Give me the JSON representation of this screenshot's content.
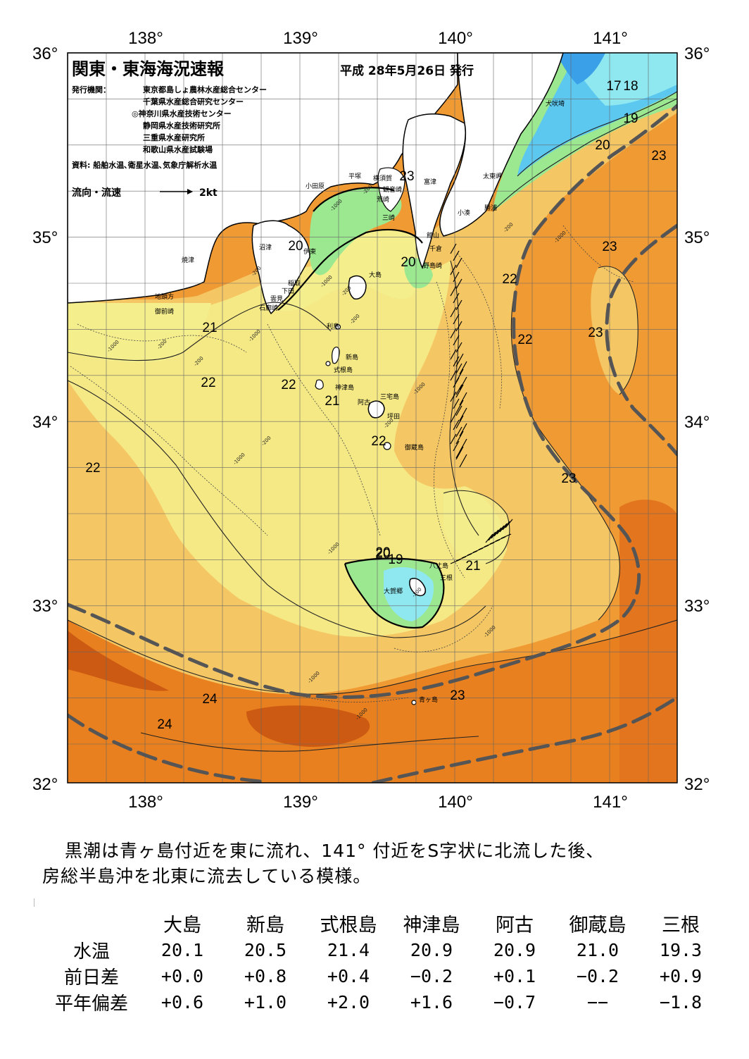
{
  "map": {
    "title": "関東・東海海況速報",
    "issued": "平成 28年5月26日 発行",
    "publisher_label": "発行機関：",
    "publishers": [
      "東京都島しょ農林水産総合センター",
      "千葉県水産総合研究センター",
      "◎神奈川県水産技術センター",
      "静岡県水産技術研究所",
      "三重県水産研究所",
      "和歌山県水産試験場"
    ],
    "source": "資料: 船舶水温､衛星水温､気象庁解析水温",
    "flow_legend": "流向・流速",
    "flow_unit": "2kt",
    "lon_labels": [
      "138°",
      "139°",
      "140°",
      "141°"
    ],
    "lat_labels": [
      "36°",
      "35°",
      "34°",
      "33°",
      "32°"
    ],
    "isotherm_labels": [
      "17",
      "18",
      "19",
      "20",
      "23",
      "23",
      "20",
      "20",
      "20",
      "22",
      "23",
      "21",
      "22",
      "23",
      "22",
      "22",
      "21",
      "22",
      "22",
      "23",
      "20",
      "19",
      "21",
      "24",
      "24",
      "23"
    ],
    "depth_labels": [
      "-200",
      "-1000",
      "-200",
      "-1000",
      "-200",
      "-200",
      "-1000",
      "-1000",
      "-200",
      "-200",
      "-1000",
      "-200",
      "-1000",
      "-200",
      "-1000",
      "-200",
      "-1000",
      "-1000",
      "-1000",
      "-1000",
      "-200"
    ],
    "place_names": [
      "犬吠埼",
      "太東岬",
      "勝浦",
      "小湊",
      "館山",
      "千倉",
      "野島崎",
      "富津",
      "横須賀",
      "観音崎",
      "荒崎",
      "三崎",
      "平塚",
      "小田原",
      "沼津",
      "伊東",
      "焼津",
      "稲取",
      "下田",
      "雲見",
      "石廊崎",
      "地頭方",
      "御前崎",
      "大島",
      "利島",
      "新島",
      "式根島",
      "神津島",
      "三宅島",
      "阿古",
      "坪田",
      "御蔵島",
      "八丈島",
      "三根",
      "大賀郷",
      "青ヶ島"
    ],
    "colors": {
      "kuroshio_axis": "#555555",
      "t17": "#3aa0e8",
      "t18": "#5cc8f0",
      "t19": "#8fe8f0",
      "t20": "#9be890",
      "t21": "#f4ee8c",
      "t22": "#f5c764",
      "t23": "#f09a34",
      "t24": "#e2751d",
      "t25": "#cc5a12",
      "land": "#ffffff"
    }
  },
  "summary": {
    "line1": "黒潮は青ヶ島付近を東に流れ、141° 付近をS字状に北流した後、",
    "line2": "房総半島沖を北東に流去している模様。"
  },
  "table": {
    "columns": [
      "大島",
      "新島",
      "式根島",
      "神津島",
      "阿古",
      "御蔵島",
      "三根"
    ],
    "rows": [
      {
        "label": "水温",
        "values": [
          "20.1",
          "20.5",
          "21.4",
          "20.9",
          "20.9",
          "21.0",
          "19.3"
        ]
      },
      {
        "label": "前日差",
        "values": [
          "+0.0",
          "+0.8",
          "+0.4",
          "−0.2",
          "+0.1",
          "−0.2",
          "+0.9"
        ]
      },
      {
        "label": "平年偏差",
        "values": [
          "+0.6",
          "+1.0",
          "+2.0",
          "+1.6",
          "−0.7",
          "−−",
          "−1.8"
        ]
      }
    ]
  }
}
